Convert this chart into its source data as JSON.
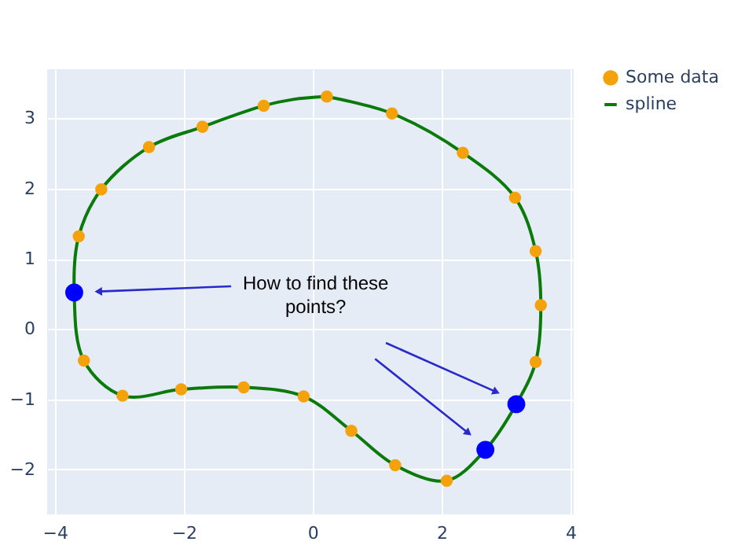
{
  "chart_data": {
    "type": "scatter",
    "xlim": [
      -4.12,
      4.05
    ],
    "ylim": [
      -2.64,
      3.7
    ],
    "xticks": [
      -4,
      -2,
      0,
      2,
      4
    ],
    "yticks": [
      -2,
      -1,
      0,
      1,
      2,
      3
    ],
    "grid": true,
    "legend": "top right",
    "annotations": [
      "How to find these points?"
    ],
    "series": [
      {
        "name": "Some data",
        "marker": "circle",
        "color": "#f4a20c",
        "x": [
          0.22,
          1.23,
          2.33,
          3.14,
          3.46,
          3.54,
          3.46,
          2.08,
          1.28,
          0.6,
          -0.14,
          -1.07,
          -2.04,
          -2.95,
          -3.55,
          -3.63,
          -3.28,
          -2.54,
          -1.71,
          -0.76
        ],
        "values": [
          3.31,
          3.07,
          2.51,
          1.87,
          1.11,
          0.34,
          -0.47,
          -2.16,
          -1.94,
          -1.45,
          -0.96,
          -0.83,
          -0.86,
          -0.95,
          -0.45,
          1.32,
          1.99,
          2.59,
          2.88,
          3.18
        ]
      },
      {
        "name": "spline",
        "type": "line",
        "line_style": "solid",
        "color": "#0a7a0a",
        "x": [
          0.22,
          1.23,
          2.33,
          3.14,
          3.46,
          3.54,
          3.46,
          3.16,
          2.68,
          2.08,
          1.28,
          0.6,
          -0.14,
          -1.07,
          -2.04,
          -2.95,
          -3.55,
          -3.7,
          -3.63,
          -3.28,
          -2.54,
          -1.71,
          -0.76,
          -0.3,
          0.2
        ],
        "values": [
          3.31,
          3.07,
          2.51,
          1.87,
          1.11,
          0.34,
          -0.47,
          -1.07,
          -1.72,
          -2.16,
          -1.94,
          -1.45,
          -0.96,
          -0.83,
          -0.86,
          -0.95,
          -0.45,
          0.52,
          1.32,
          1.99,
          2.59,
          2.88,
          3.18,
          3.27,
          3.31
        ]
      },
      {
        "marker": "circle",
        "color": "#0000ff",
        "x": [
          3.16,
          2.68,
          -3.7
        ],
        "values": [
          -1.07,
          -1.72,
          0.52
        ]
      }
    ]
  }
}
